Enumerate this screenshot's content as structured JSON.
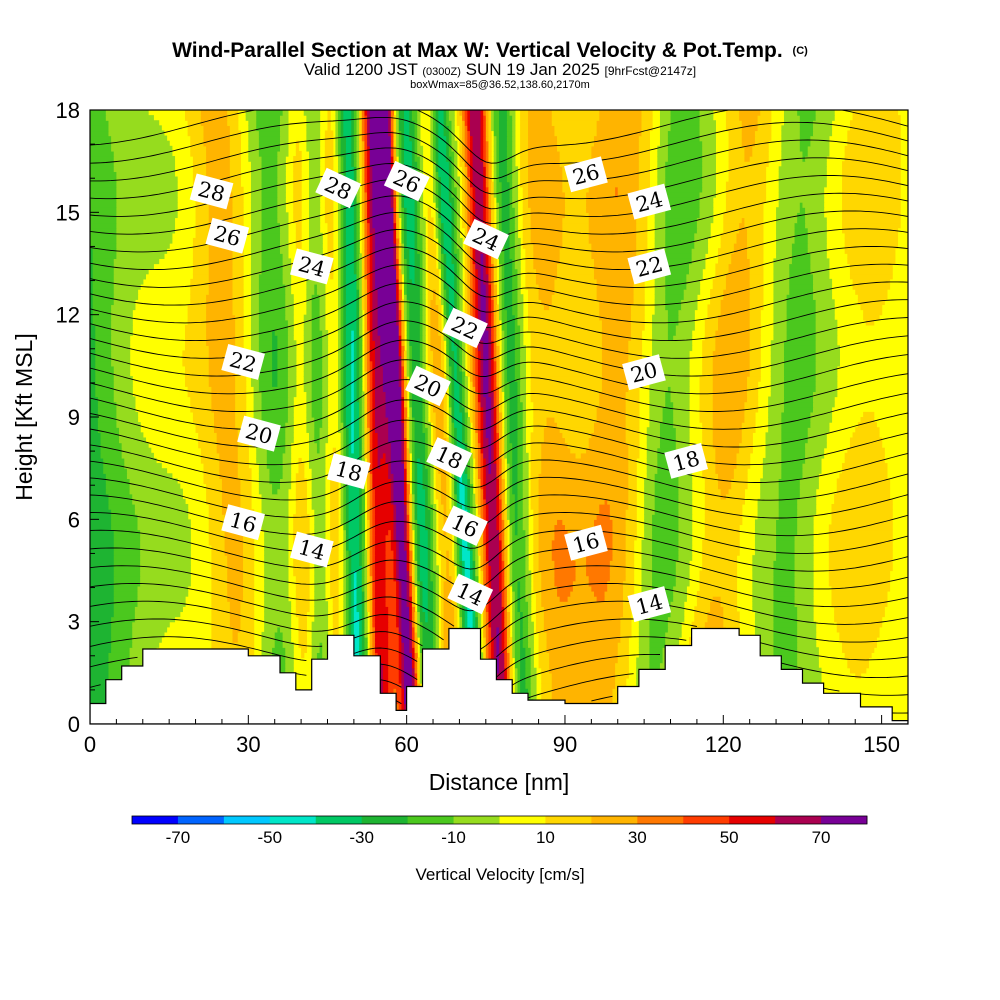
{
  "chart_data": {
    "type": "heatmap",
    "title": "Wind-Parallel Section at Max W: Vertical Velocity & Pot.Temp.",
    "title_mark": "(C)",
    "subtitle": {
      "prefix": "Valid 1200 JST",
      "utc": "(0300Z)",
      "date": "SUN 19 Jan 2025",
      "forecast": "[9hrFcst@2147z]"
    },
    "subtitle2": "boxWmax=85@36.52,138.60,2170m",
    "xlabel": "Distance [nm]",
    "ylabel": "Height [Kft MSL]",
    "xlim": [
      0,
      155
    ],
    "ylim": [
      0,
      18
    ],
    "x_ticks": [
      "0",
      "30",
      "60",
      "90",
      "120",
      "150"
    ],
    "y_ticks": [
      "0",
      "3",
      "6",
      "9",
      "12",
      "15",
      "18"
    ],
    "colorbar": {
      "label": "Vertical Velocity [cm/s]",
      "tick_labels": [
        "-70",
        "-50",
        "-30",
        "-10",
        "10",
        "30",
        "50",
        "70"
      ],
      "levels": [
        -80,
        -70,
        -60,
        -50,
        -40,
        -30,
        -20,
        -10,
        0,
        10,
        20,
        30,
        40,
        50,
        60,
        70,
        80
      ],
      "colors": [
        "#0000ff",
        "#0064ff",
        "#00c8ff",
        "#00e6c8",
        "#00c864",
        "#1eb432",
        "#4bc81e",
        "#96dc1e",
        "#ffff00",
        "#ffd700",
        "#ffb400",
        "#ff7800",
        "#ff3c00",
        "#e60000",
        "#aa0050",
        "#780096"
      ]
    },
    "velocity_bands": [
      {
        "x0": 2,
        "x1": -4,
        "w": 8,
        "amp": -25
      },
      {
        "x0": 30,
        "x1": 24,
        "w": 6,
        "amp": 25
      },
      {
        "x0": 35,
        "x1": 34,
        "w": 6,
        "amp": -22
      },
      {
        "x0": 41,
        "x1": 40,
        "w": 3,
        "amp": 28
      },
      {
        "x0": 44,
        "x1": 42,
        "w": 3,
        "amp": -30
      },
      {
        "x0": 47,
        "x1": 46,
        "w": 3,
        "amp": 30
      },
      {
        "x0": 51,
        "x1": 49,
        "w": 3,
        "amp": -60
      },
      {
        "x0": 55,
        "x1": 53,
        "w": 3,
        "amp": 65
      },
      {
        "x0": 61,
        "x1": 55.5,
        "w": 2,
        "amp": 85
      },
      {
        "x0": 64,
        "x1": 60,
        "w": 3,
        "amp": -38
      },
      {
        "x0": 69,
        "x1": 64,
        "w": 3,
        "amp": 30
      },
      {
        "x0": 73,
        "x1": 66,
        "w": 2,
        "amp": -50
      },
      {
        "x0": 78,
        "x1": 73,
        "w": 2.5,
        "amp": 70
      },
      {
        "x0": 82,
        "x1": 78,
        "w": 2.5,
        "amp": -30
      },
      {
        "x0": 89,
        "x1": 85,
        "w": 5,
        "amp": 20
      },
      {
        "x0": 97,
        "x1": 101,
        "w": 7,
        "amp": 25
      },
      {
        "x0": 106,
        "x1": 112,
        "w": 5,
        "amp": -18
      },
      {
        "x0": 117,
        "x1": 125,
        "w": 5,
        "amp": 22
      },
      {
        "x0": 131,
        "x1": 136,
        "w": 5,
        "amp": -15
      },
      {
        "x0": 145,
        "x1": 149,
        "w": 6,
        "amp": 12
      }
    ],
    "theta_contours": [
      {
        "value": 14,
        "labels": [
          {
            "x": 42,
            "y": 5.1
          },
          {
            "x": 72,
            "y": 3.8
          },
          {
            "x": 106,
            "y": 3.5
          }
        ]
      },
      {
        "value": 16,
        "labels": [
          {
            "x": 29,
            "y": 5.9
          },
          {
            "x": 71,
            "y": 5.8
          },
          {
            "x": 94,
            "y": 5.3
          }
        ]
      },
      {
        "value": 18,
        "labels": [
          {
            "x": 49,
            "y": 7.4
          },
          {
            "x": 68,
            "y": 7.8
          },
          {
            "x": 113,
            "y": 7.7
          }
        ]
      },
      {
        "value": 20,
        "labels": [
          {
            "x": 32,
            "y": 8.5
          },
          {
            "x": 64,
            "y": 9.9
          },
          {
            "x": 105,
            "y": 10.3
          }
        ]
      },
      {
        "value": 22,
        "labels": [
          {
            "x": 29,
            "y": 10.6
          },
          {
            "x": 71,
            "y": 11.6
          },
          {
            "x": 106,
            "y": 13.4
          }
        ]
      },
      {
        "value": 24,
        "labels": [
          {
            "x": 42,
            "y": 13.4
          },
          {
            "x": 75,
            "y": 14.2
          },
          {
            "x": 106,
            "y": 15.3
          }
        ]
      },
      {
        "value": 26,
        "labels": [
          {
            "x": 26,
            "y": 14.3
          },
          {
            "x": 60,
            "y": 15.9
          },
          {
            "x": 94,
            "y": 16.1
          }
        ]
      },
      {
        "value": 28,
        "labels": [
          {
            "x": 23,
            "y": 15.6
          },
          {
            "x": 47,
            "y": 15.7
          }
        ]
      }
    ],
    "terrain": [
      [
        0,
        0.6
      ],
      [
        3,
        0.6
      ],
      [
        3,
        1.3
      ],
      [
        6,
        1.3
      ],
      [
        6,
        1.7
      ],
      [
        10,
        1.7
      ],
      [
        10,
        2.2
      ],
      [
        30,
        2.2
      ],
      [
        30,
        2.0
      ],
      [
        36,
        2.0
      ],
      [
        36,
        1.5
      ],
      [
        39,
        1.5
      ],
      [
        39,
        1.0
      ],
      [
        42,
        1.0
      ],
      [
        42,
        1.9
      ],
      [
        45,
        1.9
      ],
      [
        45,
        2.6
      ],
      [
        50,
        2.6
      ],
      [
        50,
        2.0
      ],
      [
        55,
        2.0
      ],
      [
        55,
        0.9
      ],
      [
        58,
        0.9
      ],
      [
        58,
        0.4
      ],
      [
        60,
        0.4
      ],
      [
        60,
        1.1
      ],
      [
        63,
        1.1
      ],
      [
        63,
        2.2
      ],
      [
        68,
        2.2
      ],
      [
        68,
        2.8
      ],
      [
        74,
        2.8
      ],
      [
        74,
        1.9
      ],
      [
        77,
        1.9
      ],
      [
        77,
        1.3
      ],
      [
        80,
        1.3
      ],
      [
        80,
        0.9
      ],
      [
        83,
        0.9
      ],
      [
        83,
        0.7
      ],
      [
        90,
        0.7
      ],
      [
        90,
        0.6
      ],
      [
        100,
        0.6
      ],
      [
        100,
        1.1
      ],
      [
        104,
        1.1
      ],
      [
        104,
        1.6
      ],
      [
        109,
        1.6
      ],
      [
        109,
        2.3
      ],
      [
        114,
        2.3
      ],
      [
        114,
        2.8
      ],
      [
        123,
        2.8
      ],
      [
        123,
        2.6
      ],
      [
        127,
        2.6
      ],
      [
        127,
        2.0
      ],
      [
        131,
        2.0
      ],
      [
        131,
        1.6
      ],
      [
        135,
        1.6
      ],
      [
        135,
        1.2
      ],
      [
        139,
        1.2
      ],
      [
        139,
        0.9
      ],
      [
        146,
        0.9
      ],
      [
        146,
        0.5
      ],
      [
        152,
        0.5
      ],
      [
        152,
        0.1
      ],
      [
        155,
        0.1
      ]
    ]
  }
}
